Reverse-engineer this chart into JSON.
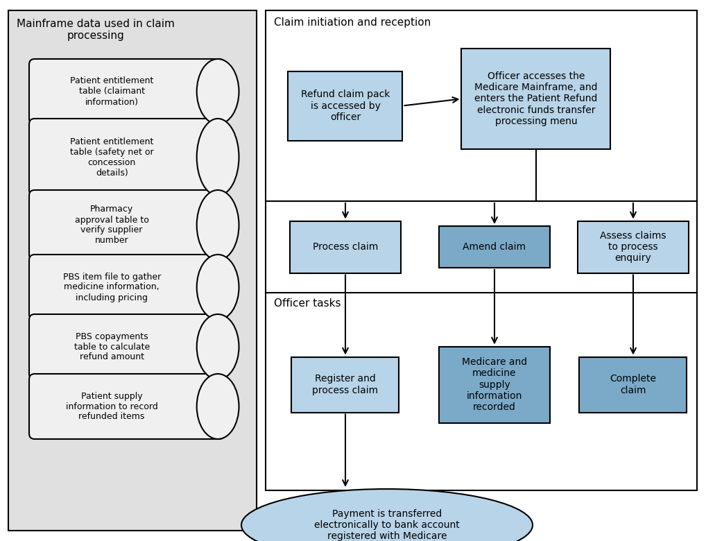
{
  "fig_width": 10.18,
  "fig_height": 7.8,
  "bg_color": "#ffffff",
  "left_panel_bg": "#e0e0e0",
  "left_panel_title": "Mainframe data used in claim\nprocessing",
  "right_panel_bg": "#ffffff",
  "right_top_title": "Claim initiation and reception",
  "right_bottom_title": "Officer tasks",
  "cylinder_fill": "#f0f0f0",
  "cylinder_edge": "#000000",
  "blue_box_fill_light": "#b8d4e8",
  "blue_box_fill_mid": "#7baac8",
  "blue_box_edge": "#000000",
  "cylinders": [
    "Patient entitlement\ntable (claimant\ninformation)",
    "Patient entitlement\ntable (safety net or\nconcession\ndetails)",
    "Pharmacy\napproval table to\nverify supplier\nnumber",
    "PBS item file to gather\nmedicine information,\nincluding pricing",
    "PBS copayments\ntable to calculate\nrefund amount",
    "Patient supply\ninformation to record\nrefunded items"
  ],
  "box1_text": "Refund claim pack\nis accessed by\nofficer",
  "box2_text": "Officer accesses the\nMedicare Mainframe, and\nenters the Patient Refund\nelectronic funds transfer\nprocessing menu",
  "box3_text": "Process claim",
  "box4_text": "Amend claim",
  "box5_text": "Assess claims\nto process\nenquiry",
  "box6_text": "Register and\nprocess claim",
  "box7_text": "Medicare and\nmedicine\nsupply\ninformation\nrecorded",
  "box8_text": "Complete\nclaim",
  "ellipse_text": "Payment is transferred\nelectronically to bank account\nregistered with Medicare"
}
